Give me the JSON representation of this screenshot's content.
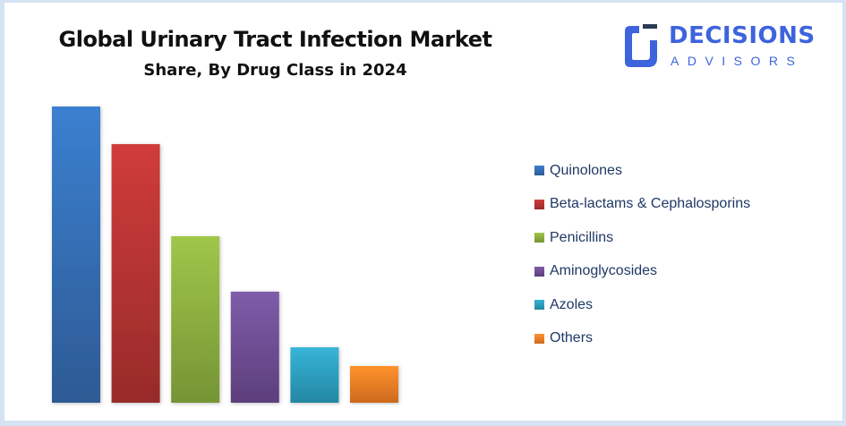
{
  "title": "Global Urinary Tract Infection Market",
  "subtitle": "Share, By Drug Class in 2024",
  "logo": {
    "main": "DECISIONS",
    "sub": "ADVISORS",
    "color": "#3d63dd"
  },
  "chart_data": {
    "type": "bar",
    "title": "Global Urinary Tract Infection Market",
    "subtitle": "Share, By Drug Class in 2024",
    "categories": [
      "Quinolones",
      "Beta-lactams & Cephalosporins",
      "Penicillins",
      "Aminoglycosides",
      "Azoles",
      "Others"
    ],
    "values": [
      100,
      87.3,
      56.2,
      37.5,
      18.7,
      12.4
    ],
    "value_unit": "relative share (largest = 100, no axis shown)",
    "colors": [
      [
        "#3b80d0",
        "#2d5a94"
      ],
      [
        "#d03c3a",
        "#972b2a"
      ],
      [
        "#a0c64a",
        "#769435"
      ],
      [
        "#7f5ca9",
        "#5c3f7c"
      ],
      [
        "#36b4d8",
        "#2487a2"
      ],
      [
        "#ff922c",
        "#cc6a1e"
      ]
    ],
    "xlabel": "",
    "ylabel": "",
    "ylim": [
      0,
      100
    ],
    "grid": false,
    "legend": "right"
  }
}
